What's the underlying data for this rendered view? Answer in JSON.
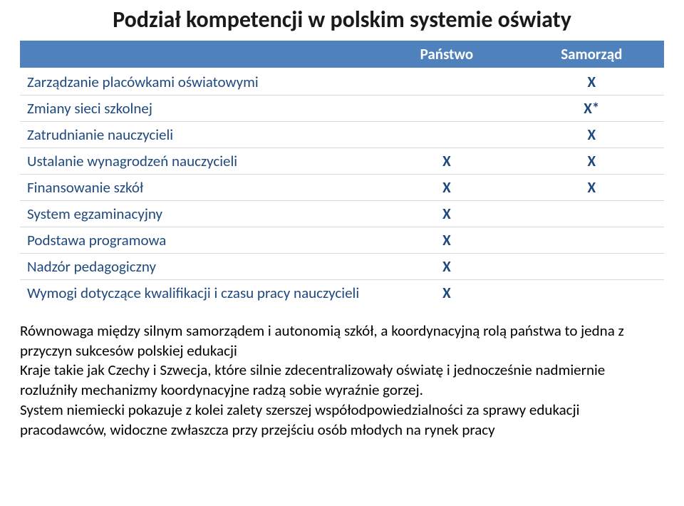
{
  "title": "Podział kompetencji w polskim systemie oświaty",
  "table": {
    "headers": [
      "",
      "Państwo",
      "Samorząd"
    ],
    "rows": [
      {
        "label": "Zarządzanie placówkami oświatowymi",
        "panstwo": "",
        "samorzad": "X"
      },
      {
        "label": "Zmiany sieci szkolnej",
        "panstwo": "",
        "samorzad": "X*"
      },
      {
        "label": "Zatrudnianie nauczycieli",
        "panstwo": "",
        "samorzad": "X"
      },
      {
        "label": "Ustalanie wynagrodzeń nauczycieli",
        "panstwo": "X",
        "samorzad": "X"
      },
      {
        "label": "Finansowanie szkół",
        "panstwo": "X",
        "samorzad": "X"
      },
      {
        "label": "System egzaminacyjny",
        "panstwo": "X",
        "samorzad": ""
      },
      {
        "label": "Podstawa programowa",
        "panstwo": "X",
        "samorzad": ""
      },
      {
        "label": "Nadzór pedagogiczny",
        "panstwo": "X",
        "samorzad": ""
      },
      {
        "label": "Wymogi dotyczące kwalifikacji i czasu pracy nauczycieli",
        "panstwo": "X",
        "samorzad": ""
      }
    ]
  },
  "paragraph": "Równowaga między silnym samorządem i autonomią szkół, a koordynacyjną rolą państwa  to jedna z przyczyn sukcesów polskiej edukacji\nKraje takie jak Czechy i Szwecja, które silnie zdecentralizowały oświatę i jednocześnie nadmiernie rozluźniły mechanizmy koordynacyjne radzą sobie wyraźnie gorzej.\nSystem niemiecki pokazuje z kolei zalety szerszej współodpowiedzialności za sprawy edukacji pracodawców, widoczne zwłaszcza przy przejściu osób młodych na rynek pracy",
  "colors": {
    "header_bg": "#4f81bd",
    "header_fg": "#ffffff",
    "cell_text": "#1f497d",
    "row_border": "#d9d9d9",
    "background": "#ffffff",
    "title_color": "#1a1a1a",
    "para_color": "#000000"
  },
  "fonts": {
    "title_size_pt": 24,
    "table_size_pt": 16,
    "para_size_pt": 16
  }
}
